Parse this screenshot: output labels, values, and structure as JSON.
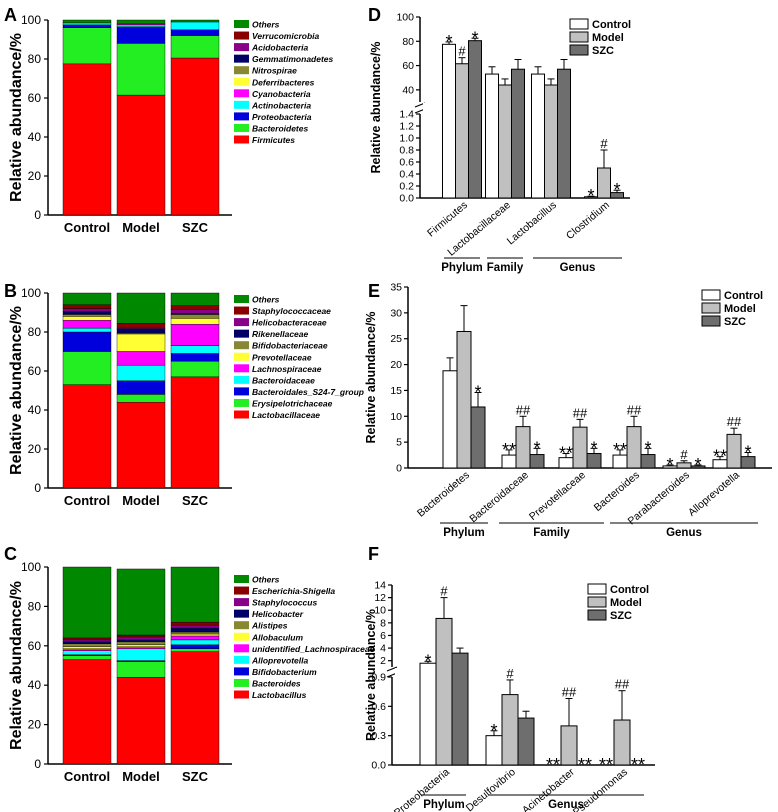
{
  "panels": {
    "A": {
      "letter": "A"
    },
    "B": {
      "letter": "B"
    },
    "C": {
      "letter": "C"
    },
    "D": {
      "letter": "D"
    },
    "E": {
      "letter": "E"
    },
    "F": {
      "letter": "F"
    }
  },
  "chart_data": [
    {
      "panel": "A",
      "type": "bar",
      "stacked": true,
      "ylabel": "Relative abundance/%",
      "ylim": [
        0,
        100
      ],
      "yticks": [
        0,
        20,
        40,
        60,
        80,
        100
      ],
      "categories": [
        "Control",
        "Model",
        "SZC"
      ],
      "legend_position": "right",
      "series": [
        {
          "name": "Firmicutes",
          "color": "#ff0000",
          "values": [
            77.5,
            61.5,
            80.5
          ]
        },
        {
          "name": "Bacteroidetes",
          "color": "#22ee22",
          "values": [
            18.5,
            26.5,
            11.5
          ]
        },
        {
          "name": "Proteobacteria",
          "color": "#0000dd",
          "values": [
            1.5,
            8.5,
            3
          ]
        },
        {
          "name": "Actinobacteria",
          "color": "#00ffff",
          "values": [
            1,
            1,
            4
          ]
        },
        {
          "name": "Cyanobacteria",
          "color": "#ff00ff",
          "values": [
            0,
            0.5,
            0
          ]
        },
        {
          "name": "Deferribacteres",
          "color": "#ffff33",
          "values": [
            0,
            0,
            0
          ]
        },
        {
          "name": "Nitrospirae",
          "color": "#888833",
          "values": [
            0,
            0,
            0
          ]
        },
        {
          "name": "Gemmatimonadetes",
          "color": "#000066",
          "values": [
            0,
            0,
            0
          ]
        },
        {
          "name": "Acidobacteria",
          "color": "#880088",
          "values": [
            0,
            0,
            0
          ]
        },
        {
          "name": "Verrucomicrobia",
          "color": "#880000",
          "values": [
            0,
            0,
            0
          ]
        },
        {
          "name": "Others",
          "color": "#008800",
          "values": [
            1.5,
            2,
            1
          ]
        }
      ]
    },
    {
      "panel": "B",
      "type": "bar",
      "stacked": true,
      "ylabel": "Relative abundance/%",
      "ylim": [
        0,
        100
      ],
      "yticks": [
        0,
        20,
        40,
        60,
        80,
        100
      ],
      "categories": [
        "Control",
        "Model",
        "SZC"
      ],
      "legend_position": "right",
      "series": [
        {
          "name": "Lactobacillaceae",
          "color": "#ff0000",
          "values": [
            53,
            44,
            57
          ]
        },
        {
          "name": "Erysipelotrichaceae",
          "color": "#22ee22",
          "values": [
            17,
            4,
            8
          ]
        },
        {
          "name": "Bacteroidales_S24-7_group",
          "color": "#0000dd",
          "values": [
            10,
            7,
            4
          ]
        },
        {
          "name": "Bacteroidaceae",
          "color": "#00ffff",
          "values": [
            2,
            8,
            4
          ]
        },
        {
          "name": "Lachnospiraceae",
          "color": "#ff00ff",
          "values": [
            4,
            7,
            11
          ]
        },
        {
          "name": "Prevotellaceae",
          "color": "#ffff33",
          "values": [
            2,
            9,
            3
          ]
        },
        {
          "name": "Bifidobacteriaceae",
          "color": "#888833",
          "values": [
            1,
            0.5,
            2
          ]
        },
        {
          "name": "Rikenellaceae",
          "color": "#000066",
          "values": [
            1.5,
            2,
            0.5
          ]
        },
        {
          "name": "Helicobacteraceae",
          "color": "#880088",
          "values": [
            1.5,
            0.5,
            2
          ]
        },
        {
          "name": "Staphylococcaceae",
          "color": "#880000",
          "values": [
            2,
            2.5,
            2
          ]
        },
        {
          "name": "Others",
          "color": "#008800",
          "values": [
            6,
            15.5,
            6.5
          ]
        }
      ]
    },
    {
      "panel": "C",
      "type": "bar",
      "stacked": true,
      "ylabel": "Relative abundance/%",
      "ylim": [
        0,
        100
      ],
      "yticks": [
        0,
        20,
        40,
        60,
        80,
        100
      ],
      "categories": [
        "Control",
        "Model",
        "SZC"
      ],
      "legend_position": "right",
      "series": [
        {
          "name": "Lactobacillus",
          "color": "#ff0000",
          "values": [
            53,
            44,
            57
          ]
        },
        {
          "name": "Bacteroides",
          "color": "#22ee22",
          "values": [
            2,
            8,
            1.5
          ]
        },
        {
          "name": "Bifidobacterium",
          "color": "#0000dd",
          "values": [
            0.5,
            0.5,
            2
          ]
        },
        {
          "name": "Alloprevotella",
          "color": "#00ffff",
          "values": [
            2,
            6,
            2.5
          ]
        },
        {
          "name": "unidentified_Lachnospiraceae",
          "color": "#ff00ff",
          "values": [
            1,
            1,
            2
          ]
        },
        {
          "name": "Allobaculum",
          "color": "#ffff33",
          "values": [
            1,
            1,
            1
          ]
        },
        {
          "name": "Alistipes",
          "color": "#888833",
          "values": [
            1.5,
            1.5,
            1
          ]
        },
        {
          "name": "Helicobacter",
          "color": "#000066",
          "values": [
            1,
            1,
            2
          ]
        },
        {
          "name": "Staphylococcus",
          "color": "#880088",
          "values": [
            1,
            1.5,
            1.5
          ]
        },
        {
          "name": "Escherichia-Shigella",
          "color": "#880000",
          "values": [
            1,
            1,
            1.5
          ]
        },
        {
          "name": "Others",
          "color": "#008800",
          "values": [
            36,
            33.5,
            28
          ]
        }
      ]
    },
    {
      "panel": "D",
      "type": "bar",
      "ylabel": "Relative abundance/%",
      "y_break": true,
      "ylim_lower": [
        0,
        1.4
      ],
      "yticks_lower": [
        0.0,
        0.2,
        0.4,
        0.6,
        0.8,
        1.0,
        1.2,
        1.4
      ],
      "ylim_upper": [
        30,
        100
      ],
      "yticks_upper": [
        40,
        60,
        80,
        100
      ],
      "legend_position": "top-right",
      "categories": [
        "Firmicutes",
        "Lactobacillaceae",
        "Lactobacillus",
        "Clostridium"
      ],
      "groups": [
        {
          "label": "Phylum",
          "categories": [
            "Firmicutes"
          ]
        },
        {
          "label": "Family",
          "categories": [
            "Lactobacillaceae"
          ]
        },
        {
          "label": "Genus",
          "categories": [
            "Lactobacillus",
            "Clostridium"
          ]
        }
      ],
      "series": [
        {
          "name": "Control",
          "color": "#ffffff",
          "values": [
            77.5,
            53,
            53,
            0.02
          ],
          "errors": [
            2,
            6,
            6,
            0.01
          ],
          "marks": [
            "*",
            "",
            "",
            "*"
          ]
        },
        {
          "name": "Model",
          "color": "#c0c0c0",
          "values": [
            61.5,
            44,
            44,
            0.5
          ],
          "errors": [
            5,
            5,
            5,
            0.3
          ],
          "marks": [
            "#",
            "",
            "",
            "#"
          ]
        },
        {
          "name": "SZC",
          "color": "#6e6e6e",
          "values": [
            80.5,
            57,
            57,
            0.09
          ],
          "errors": [
            2,
            8,
            8,
            0.04
          ],
          "marks": [
            "*",
            "",
            "",
            "*"
          ]
        }
      ]
    },
    {
      "panel": "E",
      "type": "bar",
      "ylabel": "Relative abundance/%",
      "ylim": [
        0,
        35
      ],
      "yticks": [
        0,
        5,
        10,
        15,
        20,
        25,
        30,
        35
      ],
      "legend_position": "top-right",
      "categories": [
        "Bacteroidetes",
        "Bacteroidaceae",
        "Prevotellaceae",
        "Bacteroides",
        "Parabacteroides",
        "Alloprevotella"
      ],
      "groups": [
        {
          "label": "Phylum",
          "categories": [
            "Bacteroidetes"
          ]
        },
        {
          "label": "Family",
          "categories": [
            "Bacteroidaceae",
            "Prevotellaceae"
          ]
        },
        {
          "label": "Genus",
          "categories": [
            "Bacteroides",
            "Parabacteroides",
            "Alloprevotella"
          ]
        }
      ],
      "series": [
        {
          "name": "Control",
          "color": "#ffffff",
          "values": [
            18.8,
            2.5,
            2.0,
            2.5,
            0.4,
            1.6
          ],
          "errors": [
            2.5,
            1.0,
            0.8,
            1.0,
            0.2,
            0.6
          ],
          "marks": [
            "",
            "**",
            "**",
            "**",
            "*",
            "**"
          ]
        },
        {
          "name": "Model",
          "color": "#c0c0c0",
          "values": [
            26.4,
            8.0,
            7.9,
            8.0,
            1.0,
            6.5
          ],
          "errors": [
            5.0,
            2.0,
            1.5,
            2.0,
            0.4,
            1.2
          ],
          "marks": [
            "",
            "##",
            "##",
            "##",
            "#",
            "##"
          ]
        },
        {
          "name": "SZC",
          "color": "#6e6e6e",
          "values": [
            11.8,
            2.6,
            2.8,
            2.6,
            0.4,
            2.2
          ],
          "errors": [
            2.8,
            1.2,
            1.0,
            1.2,
            0.2,
            0.8
          ],
          "marks": [
            "*",
            "*",
            "*",
            "*",
            "*",
            "*"
          ]
        }
      ]
    },
    {
      "panel": "F",
      "type": "bar",
      "ylabel": "Relative abundance/%",
      "y_break": true,
      "ylim_lower": [
        0,
        0.9
      ],
      "yticks_lower": [
        0.0,
        0.3,
        0.6,
        0.9
      ],
      "ylim_upper": [
        1,
        14
      ],
      "yticks_upper": [
        2,
        4,
        6,
        8,
        10,
        12,
        14
      ],
      "legend_position": "top-right",
      "categories": [
        "Proteobacteria",
        "Desulfovibrio",
        "Acinetobacter",
        "Pseudomonas"
      ],
      "groups": [
        {
          "label": "Phylum",
          "categories": [
            "Proteobacteria"
          ]
        },
        {
          "label": "Genus",
          "categories": [
            "Desulfovibrio",
            "Acinetobacter",
            "Pseudomonas"
          ]
        }
      ],
      "series": [
        {
          "name": "Control",
          "color": "#ffffff",
          "values": [
            1.6,
            0.3,
            0.0,
            0.0
          ],
          "errors": [
            0.3,
            0.05,
            0.0,
            0.0
          ],
          "marks": [
            "*",
            "*",
            "**",
            "**"
          ]
        },
        {
          "name": "Model",
          "color": "#c0c0c0",
          "values": [
            8.7,
            0.72,
            0.4,
            0.46
          ],
          "errors": [
            3.3,
            0.15,
            0.28,
            0.3
          ],
          "marks": [
            "#",
            "#",
            "##",
            "##"
          ]
        },
        {
          "name": "SZC",
          "color": "#6e6e6e",
          "values": [
            3.2,
            0.48,
            0.0,
            0.0
          ],
          "errors": [
            0.8,
            0.07,
            0.0,
            0.0
          ],
          "marks": [
            "",
            "",
            "**",
            "**"
          ]
        }
      ]
    }
  ]
}
